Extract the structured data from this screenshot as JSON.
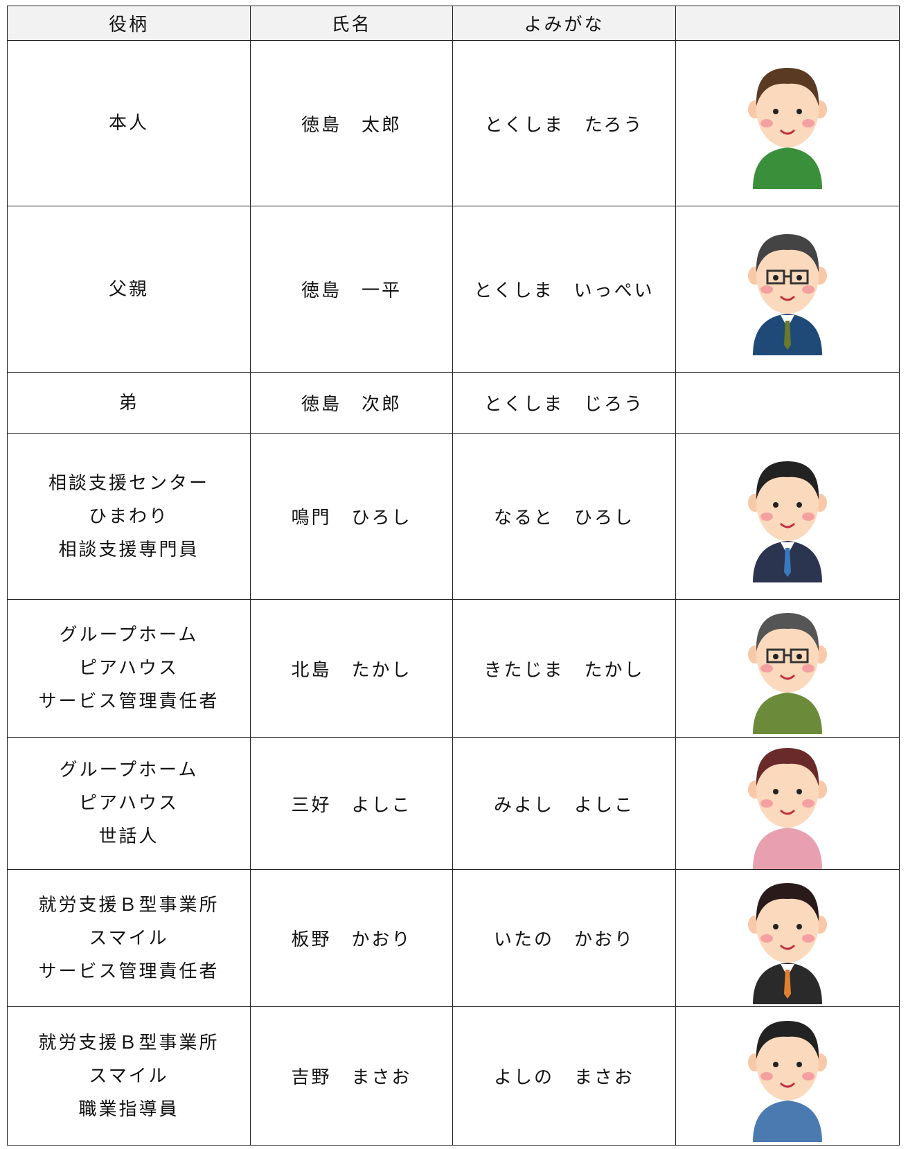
{
  "table": {
    "header": [
      "役柄",
      "氏名",
      "よみがな"
    ],
    "rows": [
      {
        "role": [
          "本人"
        ],
        "name": "徳島　太郎",
        "reading": "とくしま　たろう"
      },
      {
        "role": [
          "父親"
        ],
        "name": "徳島　一平",
        "reading": "とくしま　いっぺい"
      },
      {
        "role": [
          "弟"
        ],
        "name": "徳島　次郎",
        "reading": "とくしま　じろう"
      },
      {
        "role": [
          "相談支援センター",
          "ひまわり",
          "相談支援専門員"
        ],
        "name": "鳴門　ひろし",
        "reading": "なると　ひろし"
      },
      {
        "role": [
          "グループホーム",
          "ピアハウス",
          "サービス管理責任者"
        ],
        "name": "北島　たかし",
        "reading": "きたじま　たかし"
      },
      {
        "role": [
          "グループホーム",
          "ピアハウス",
          "世話人"
        ],
        "name": "三好　よしこ",
        "reading": "みよし　よしこ"
      },
      {
        "role": [
          "就労支援Ｂ型事業所",
          "スマイル",
          "サービス管理責任者"
        ],
        "name": "板野　かおり",
        "reading": "いたの　かおり"
      },
      {
        "role": [
          "就労支援Ｂ型事業所",
          "スマイル",
          "職業指導員"
        ],
        "name": "吉野　まさお",
        "reading": "よしの　まさお"
      }
    ]
  }
}
